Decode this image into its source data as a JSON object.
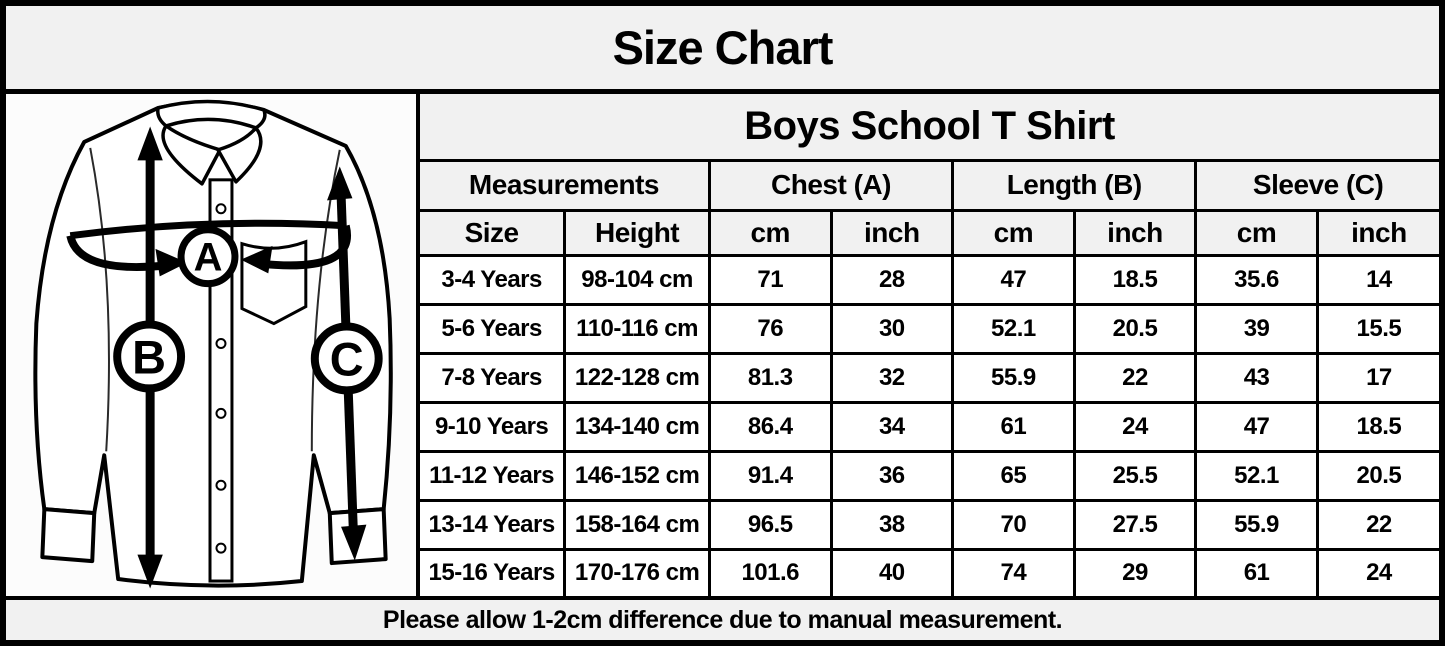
{
  "page": {
    "title": "Size Chart",
    "footer_note": "Please allow 1-2cm difference due to manual measurement."
  },
  "diagram": {
    "markers": [
      "A",
      "B",
      "C"
    ]
  },
  "table": {
    "title": "Boys School T Shirt",
    "group_headers": [
      {
        "label": "Measurements",
        "span": 2
      },
      {
        "label": "Chest (A)",
        "span": 2
      },
      {
        "label": "Length (B)",
        "span": 2
      },
      {
        "label": "Sleeve (C)",
        "span": 2
      }
    ],
    "column_headers": [
      "Size",
      "Height",
      "cm",
      "inch",
      "cm",
      "inch",
      "cm",
      "inch"
    ],
    "rows": [
      [
        "3-4 Years",
        "98-104 cm",
        "71",
        "28",
        "47",
        "18.5",
        "35.6",
        "14"
      ],
      [
        "5-6 Years",
        "110-116 cm",
        "76",
        "30",
        "52.1",
        "20.5",
        "39",
        "15.5"
      ],
      [
        "7-8 Years",
        "122-128 cm",
        "81.3",
        "32",
        "55.9",
        "22",
        "43",
        "17"
      ],
      [
        "9-10 Years",
        "134-140 cm",
        "86.4",
        "34",
        "61",
        "24",
        "47",
        "18.5"
      ],
      [
        "11-12 Years",
        "146-152 cm",
        "91.4",
        "36",
        "65",
        "25.5",
        "52.1",
        "20.5"
      ],
      [
        "13-14 Years",
        "158-164 cm",
        "96.5",
        "38",
        "70",
        "27.5",
        "55.9",
        "22"
      ],
      [
        "15-16 Years",
        "170-176 cm",
        "101.6",
        "40",
        "74",
        "29",
        "61",
        "24"
      ]
    ]
  },
  "chart_data": {
    "type": "table",
    "title": "Boys School T Shirt",
    "columns": [
      "Size",
      "Height",
      "Chest (A) cm",
      "Chest (A) inch",
      "Length (B) cm",
      "Length (B) inch",
      "Sleeve (C) cm",
      "Sleeve (C) inch"
    ],
    "rows": [
      [
        "3-4 Years",
        "98-104 cm",
        71,
        28,
        47,
        18.5,
        35.6,
        14
      ],
      [
        "5-6 Years",
        "110-116 cm",
        76,
        30,
        52.1,
        20.5,
        39,
        15.5
      ],
      [
        "7-8 Years",
        "122-128 cm",
        81.3,
        32,
        55.9,
        22,
        43,
        17
      ],
      [
        "9-10 Years",
        "134-140 cm",
        86.4,
        34,
        61,
        24,
        47,
        18.5
      ],
      [
        "11-12 Years",
        "146-152 cm",
        91.4,
        36,
        65,
        25.5,
        52.1,
        20.5
      ],
      [
        "13-14 Years",
        "158-164 cm",
        96.5,
        38,
        70,
        27.5,
        55.9,
        22
      ],
      [
        "15-16 Years",
        "170-176 cm",
        101.6,
        40,
        74,
        29,
        61,
        24
      ]
    ]
  },
  "colors": {
    "band_gray": "#f1f1f1",
    "cell_white": "#ffffff",
    "border_black": "#000000",
    "text_black": "#000000"
  }
}
